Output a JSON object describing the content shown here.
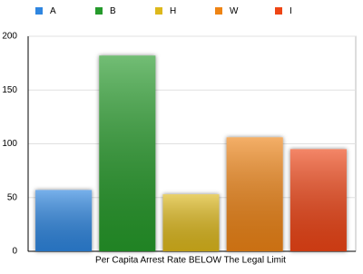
{
  "chart_data": {
    "type": "bar",
    "x_label": "Per Capita Arrest Rate BELOW The Legal Limit",
    "categories": [
      "A",
      "B",
      "H",
      "W",
      "I"
    ],
    "values": [
      57,
      182,
      53,
      106,
      95
    ],
    "colors": [
      "#2f86e0",
      "#259a2c",
      "#ddb81c",
      "#ee8414",
      "#ee4514"
    ],
    "ylim": [
      0,
      200
    ],
    "yticks": [
      0,
      50,
      100,
      150,
      200
    ],
    "grid": true,
    "legend": "top"
  }
}
